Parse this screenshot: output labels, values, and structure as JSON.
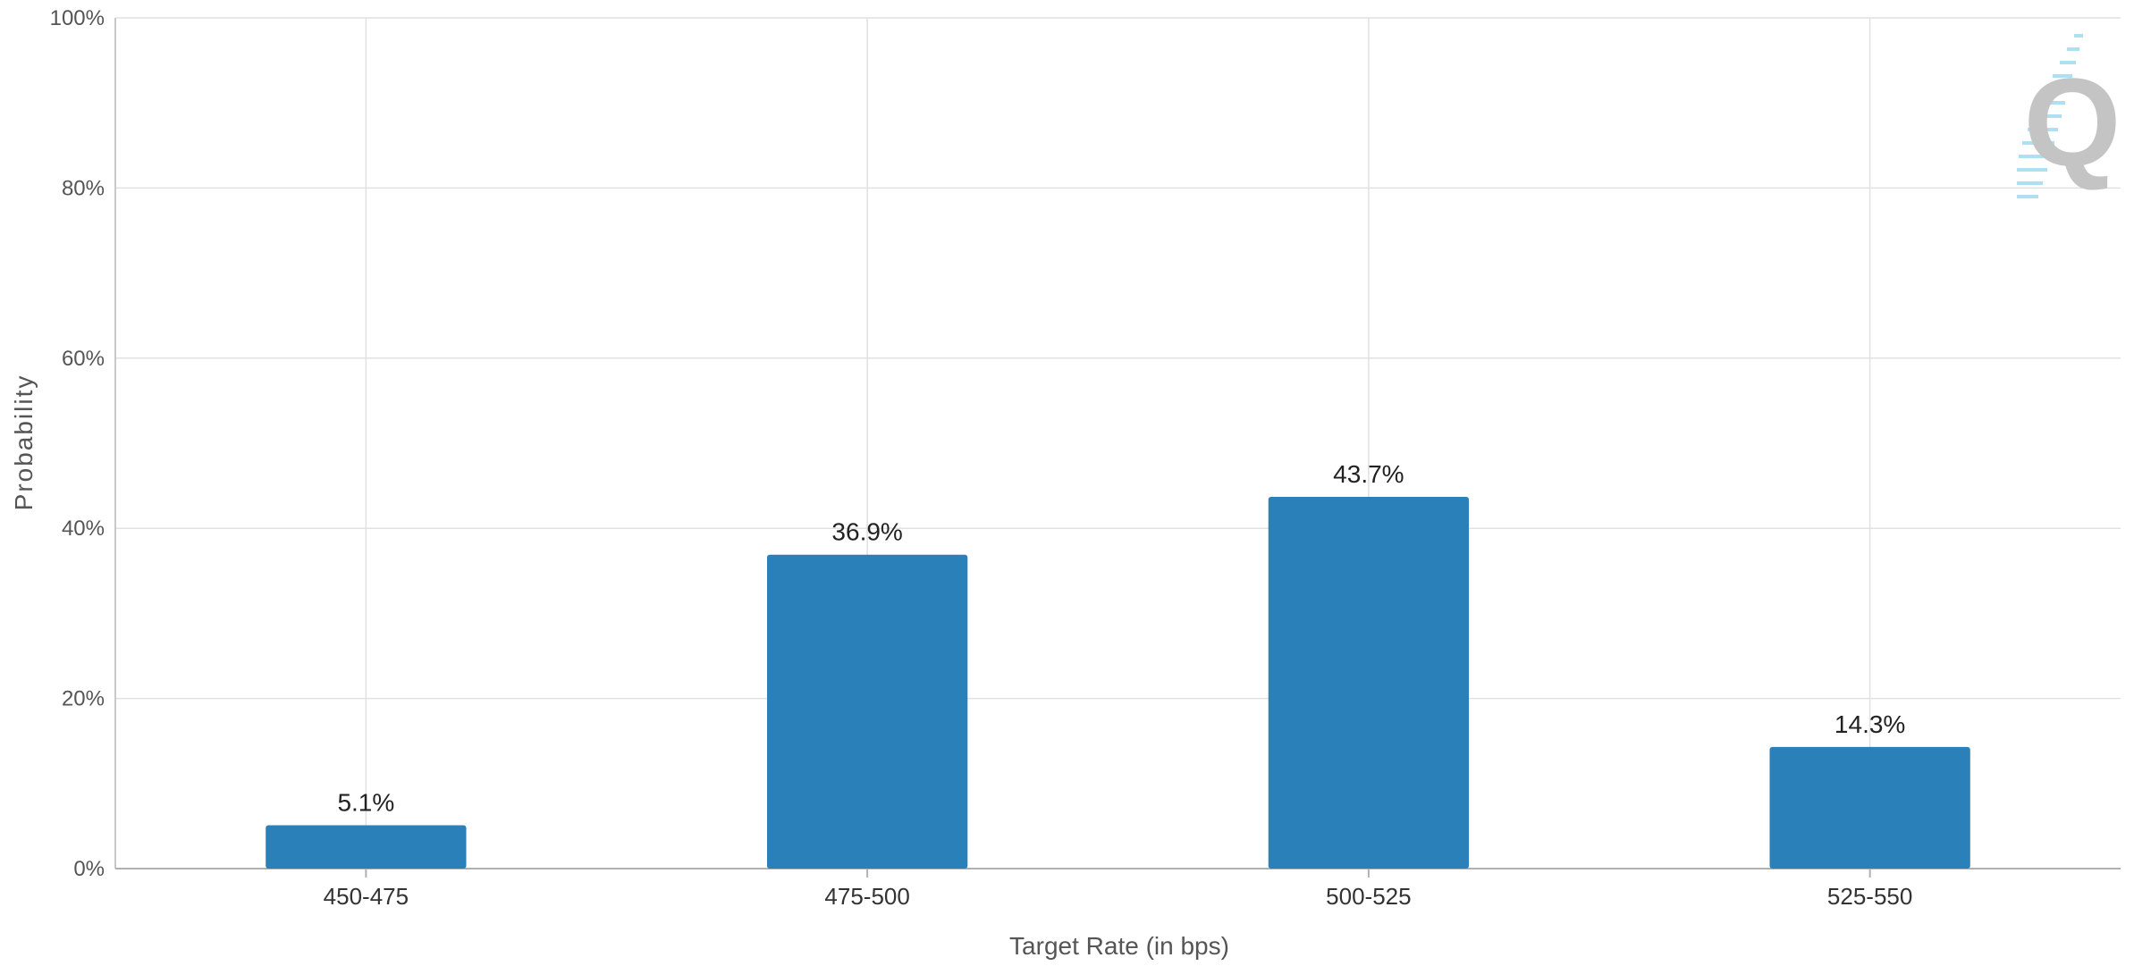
{
  "chart_data": {
    "type": "bar",
    "categories": [
      "450-475",
      "475-500",
      "500-525",
      "525-550"
    ],
    "values": [
      5.1,
      36.9,
      43.7,
      14.3
    ],
    "data_labels": [
      "5.1%",
      "36.9%",
      "43.7%",
      "14.3%"
    ],
    "xlabel": "Target Rate (in bps)",
    "ylabel": "Probability",
    "ylim": [
      0,
      100
    ],
    "yticks": [
      0,
      20,
      40,
      60,
      80,
      100
    ],
    "ytick_labels": [
      "0%",
      "20%",
      "40%",
      "60%",
      "80%",
      "100%"
    ],
    "grid": true,
    "bar_color": "#2a80b9",
    "watermark_letter": "Q"
  }
}
